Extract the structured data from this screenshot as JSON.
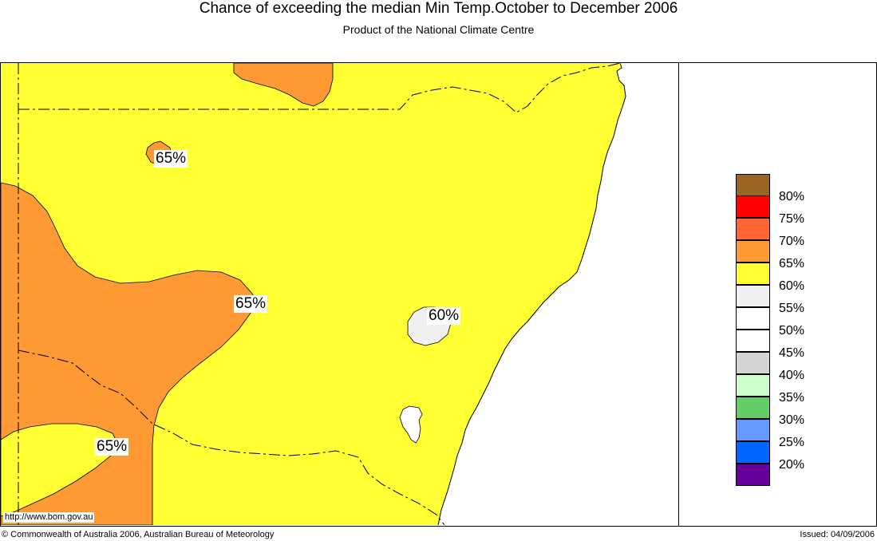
{
  "header": {
    "title": "Chance of exceeding the median Min Temp.October to December 2006",
    "subtitle": "Product of the National Climate Centre"
  },
  "map": {
    "labels": [
      {
        "id": "label-65-north",
        "text": "65%"
      },
      {
        "id": "label-65-west",
        "text": "65%"
      },
      {
        "id": "label-65-southwest",
        "text": "65%"
      },
      {
        "id": "label-60-east",
        "text": "60%"
      }
    ],
    "url": "http://www.bom.gov.au",
    "colors": {
      "yellow": "#ffff33",
      "orange": "#ff9933",
      "light_grey": "#f0f0f0",
      "ocean": "#ffffff"
    }
  },
  "legend": {
    "items": [
      {
        "label": "80%",
        "color": "#996622"
      },
      {
        "label": "75%",
        "color": "#ff0000"
      },
      {
        "label": "70%",
        "color": "#ff6633"
      },
      {
        "label": "65%",
        "color": "#ff9933"
      },
      {
        "label": "60%",
        "color": "#ffff33"
      },
      {
        "label": "55%",
        "color": "#f0f0f0"
      },
      {
        "label": "50%",
        "color": "#ffffff"
      },
      {
        "label": "45%",
        "color": "#ffffff"
      },
      {
        "label": "40%",
        "color": "#d4d4d4"
      },
      {
        "label": "35%",
        "color": "#ccffcc"
      },
      {
        "label": "30%",
        "color": "#66cc66"
      },
      {
        "label": "25%",
        "color": "#6699ff"
      },
      {
        "label": "20%",
        "color": "#0066ff"
      },
      {
        "label": "",
        "color": "#660099"
      }
    ]
  },
  "footer": {
    "copyright": "© Commonwealth of Australia 2006, Australian Bureau of Meteorology",
    "issued": "Issued: 04/09/2006"
  }
}
